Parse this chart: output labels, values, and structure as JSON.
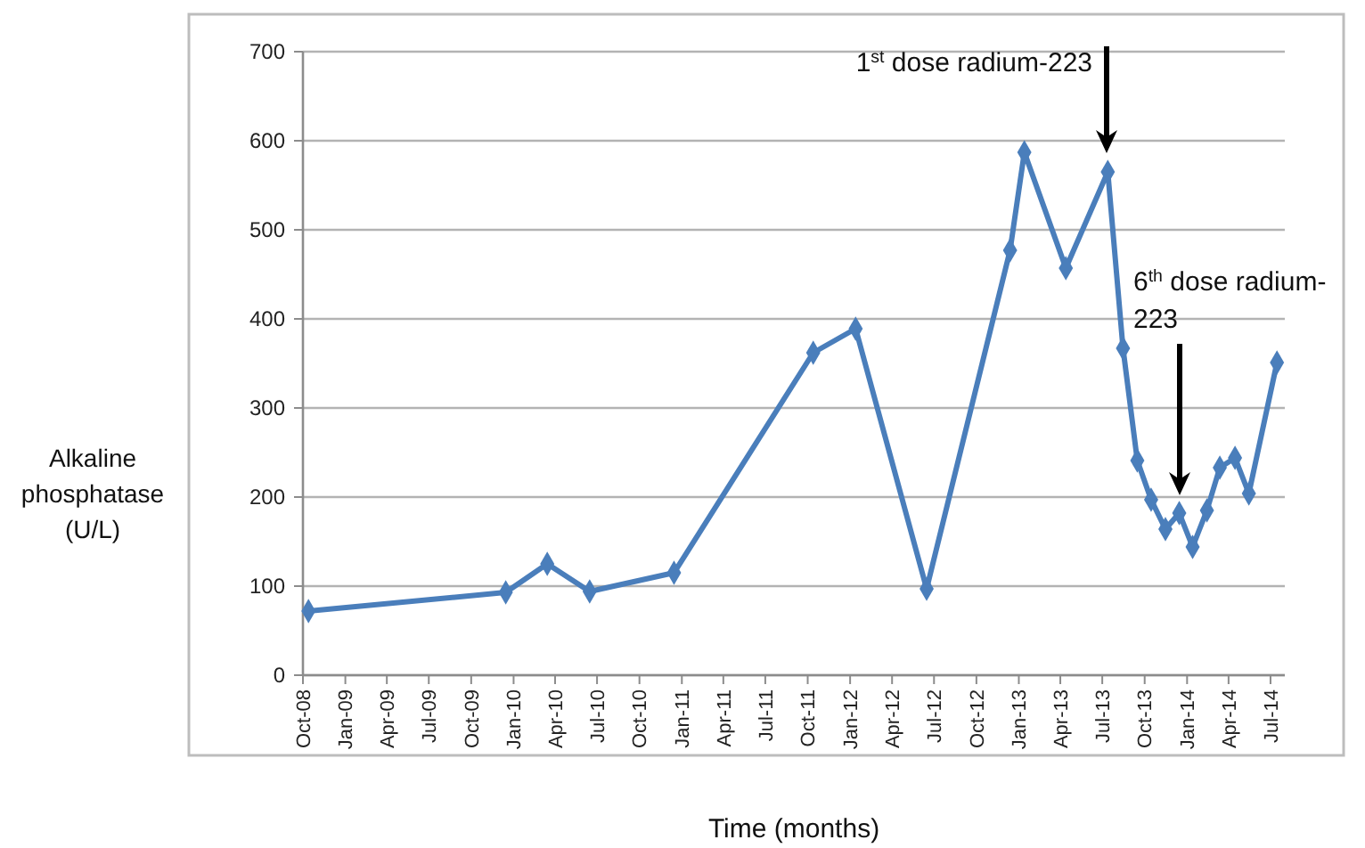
{
  "chart_data": {
    "type": "line",
    "xlabel": "Time (months)",
    "ylabel": "Alkaline phosphatase (U/L)",
    "x": [
      "2008-10-13",
      "2009-12-15",
      "2010-03-15",
      "2010-06-15",
      "2010-12-15",
      "2011-10-13",
      "2012-01-13",
      "2012-06-15",
      "2012-12-13",
      "2013-01-13",
      "2013-04-13",
      "2013-07-13",
      "2013-08-15",
      "2013-09-15",
      "2013-10-15",
      "2013-11-15",
      "2013-12-15",
      "2014-01-13",
      "2014-02-13",
      "2014-03-13",
      "2014-04-15",
      "2014-05-15",
      "2014-07-15"
    ],
    "series": [
      {
        "color": "#4a7ebb",
        "values": [
          72,
          93,
          125,
          94,
          115,
          362,
          389,
          97,
          477,
          587,
          457,
          565,
          367,
          241,
          197,
          164,
          182,
          144,
          185,
          233,
          244,
          204,
          351
        ]
      }
    ],
    "xlim": [
      "2008-10",
      "2014-08"
    ],
    "xticks": [
      {
        "value": "2008-10",
        "label": "Oct-08"
      },
      {
        "value": "2009-01",
        "label": "Jan-09"
      },
      {
        "value": "2009-04",
        "label": "Apr-09"
      },
      {
        "value": "2009-07",
        "label": "Jul-09"
      },
      {
        "value": "2009-10",
        "label": "Oct-09"
      },
      {
        "value": "2010-01",
        "label": "Jan-10"
      },
      {
        "value": "2010-04",
        "label": "Apr-10"
      },
      {
        "value": "2010-07",
        "label": "Jul-10"
      },
      {
        "value": "2010-10",
        "label": "Oct-10"
      },
      {
        "value": "2011-01",
        "label": "Jan-11"
      },
      {
        "value": "2011-04",
        "label": "Apr-11"
      },
      {
        "value": "2011-07",
        "label": "Jul-11"
      },
      {
        "value": "2011-10",
        "label": "Oct-11"
      },
      {
        "value": "2012-01",
        "label": "Jan-12"
      },
      {
        "value": "2012-04",
        "label": "Apr-12"
      },
      {
        "value": "2012-07",
        "label": "Jul-12"
      },
      {
        "value": "2012-10",
        "label": "Oct-12"
      },
      {
        "value": "2013-01",
        "label": "Jan-13"
      },
      {
        "value": "2013-04",
        "label": "Apr-13"
      },
      {
        "value": "2013-07",
        "label": "Jul-13"
      },
      {
        "value": "2013-10",
        "label": "Oct-13"
      },
      {
        "value": "2014-01",
        "label": "Jan-14"
      },
      {
        "value": "2014-04",
        "label": "Apr-14"
      },
      {
        "value": "2014-07",
        "label": "Jul-14"
      }
    ],
    "ylim": [
      0,
      700
    ],
    "yticks": [
      0,
      100,
      200,
      300,
      400,
      500,
      600,
      700
    ],
    "grid": "y",
    "marker": "diamond",
    "line_style": "solid",
    "annotations": [
      "1$^{st}$ dose radium-223",
      "6$^{th}$ dose radium-223"
    ]
  }
}
